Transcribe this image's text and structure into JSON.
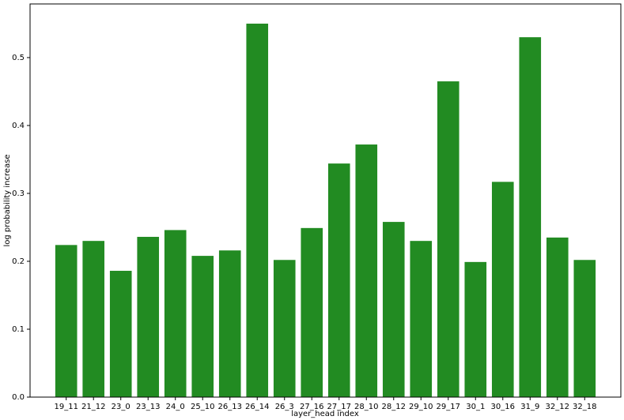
{
  "chart_data": {
    "type": "bar",
    "xlabel": "layer_head index",
    "ylabel": "log probability increase",
    "categories": [
      "19_11",
      "21_12",
      "23_0",
      "23_13",
      "24_0",
      "25_10",
      "26_13",
      "26_14",
      "26_3",
      "27_16",
      "27_17",
      "28_10",
      "28_12",
      "29_10",
      "29_17",
      "30_1",
      "30_16",
      "31_9",
      "32_12",
      "32_18"
    ],
    "values": [
      0.224,
      0.23,
      0.186,
      0.236,
      0.246,
      0.208,
      0.216,
      0.55,
      0.202,
      0.249,
      0.344,
      0.372,
      0.258,
      0.23,
      0.465,
      0.199,
      0.317,
      0.53,
      0.235,
      0.202
    ],
    "color": "#228b22",
    "ylim": [
      0,
      0.579
    ],
    "yticks": [
      {
        "value": 0,
        "label": "0.0"
      },
      0.1,
      0.2,
      0.3,
      0.4,
      0.5
    ]
  }
}
